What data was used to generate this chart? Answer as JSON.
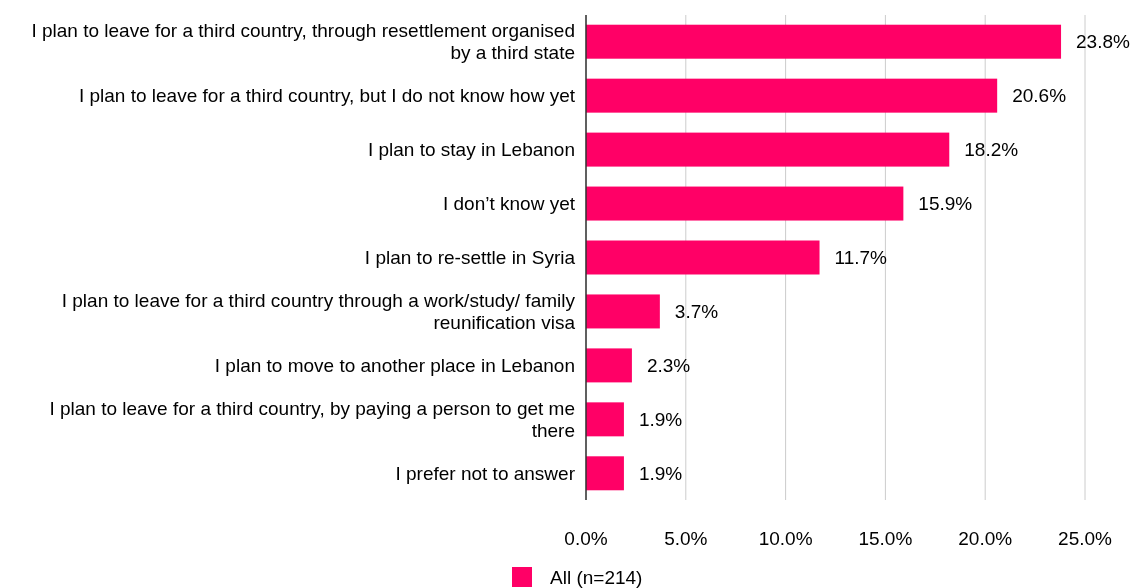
{
  "chart_data": {
    "type": "bar",
    "orientation": "horizontal",
    "categories": [
      "I plan to leave for a third country, through resettlement organised by a third state",
      "I plan to leave for a third country, but I do not know how yet",
      "I plan to stay in Lebanon",
      "I don’t know yet",
      "I plan to re-settle in Syria",
      "I plan to leave for a third country through a work/study/ family reunification visa",
      "I plan to move to another place in Lebanon",
      "I plan to leave for a third country, by paying a person to get me there",
      "I prefer not to answer"
    ],
    "series": [
      {
        "name": "All (n=214)",
        "color": "#ff0066",
        "values": [
          23.8,
          20.6,
          18.2,
          15.9,
          11.7,
          3.7,
          2.3,
          1.9,
          1.9
        ],
        "value_labels": [
          "23.8%",
          "20.6%",
          "18.2%",
          "15.9%",
          "11.7%",
          "3.7%",
          "2.3%",
          "1.9%",
          "1.9%"
        ]
      }
    ],
    "xlim": [
      0,
      25
    ],
    "xticks": [
      {
        "value": 0,
        "label": "0.0%"
      },
      {
        "value": 5,
        "label": "5.0%"
      },
      {
        "value": 10,
        "label": "10.0%"
      },
      {
        "value": 15,
        "label": "15.0%"
      },
      {
        "value": 20,
        "label": "20.0%"
      },
      {
        "value": 25,
        "label": "25.0%"
      }
    ],
    "grid": "x",
    "legend": "bottom"
  }
}
